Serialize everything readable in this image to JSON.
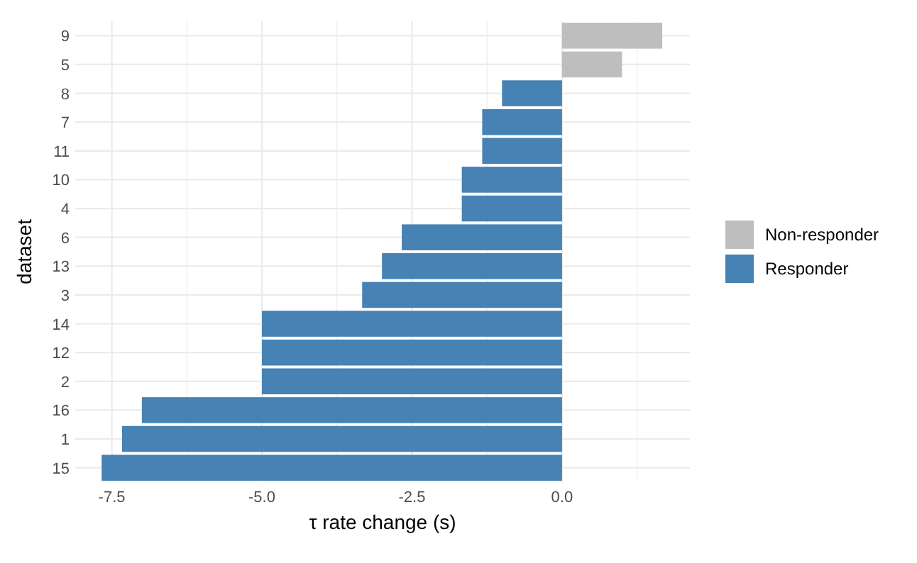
{
  "chart_data": {
    "type": "bar",
    "orientation": "horizontal",
    "xlabel": "τ  rate change (s)",
    "ylabel": "dataset",
    "categories": [
      "9",
      "5",
      "8",
      "7",
      "11",
      "10",
      "4",
      "6",
      "13",
      "3",
      "14",
      "12",
      "2",
      "16",
      "1",
      "15"
    ],
    "series": [
      {
        "name": "Non-responder",
        "color": "#bebebe",
        "values": [
          1.67,
          1.0,
          null,
          null,
          null,
          null,
          null,
          null,
          null,
          null,
          null,
          null,
          null,
          null,
          null,
          null
        ]
      },
      {
        "name": "Responder",
        "color": "#4682b4",
        "values": [
          null,
          null,
          -1.0,
          -1.33,
          -1.33,
          -1.67,
          -1.67,
          -2.67,
          -3.0,
          -3.33,
          -5.0,
          -5.0,
          -5.0,
          -7.0,
          -7.33,
          -7.67
        ]
      }
    ],
    "xlim": [
      -8.11,
      2.13
    ],
    "xticks": [
      {
        "value": -7.5,
        "label": "-7.5"
      },
      {
        "value": -6.25,
        "label": null
      },
      {
        "value": -5,
        "label": "-5.0"
      },
      {
        "value": -3.75,
        "label": null
      },
      {
        "value": -2.5,
        "label": "-2.5"
      },
      {
        "value": -1.25,
        "label": null
      },
      {
        "value": 0,
        "label": "0.0"
      },
      {
        "value": 1.25,
        "label": null
      }
    ],
    "grid": true,
    "legend": "right"
  }
}
